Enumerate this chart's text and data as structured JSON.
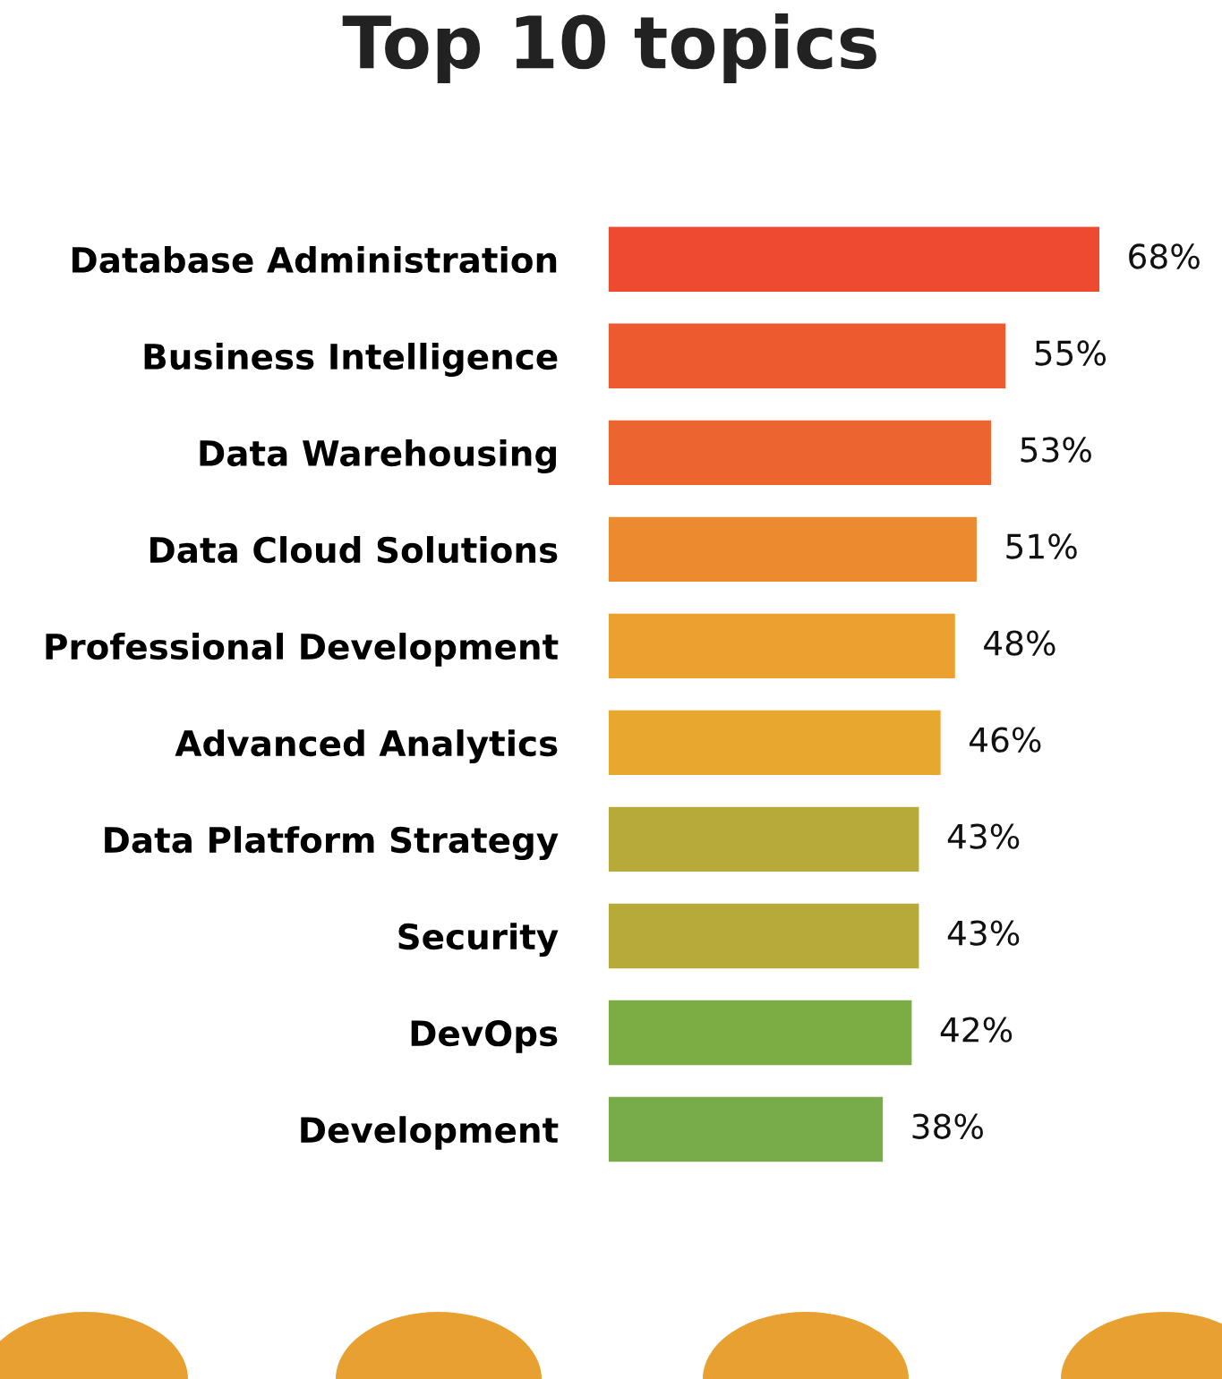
{
  "chart_data": {
    "type": "bar",
    "orientation": "horizontal",
    "title": "Top 10 topics",
    "categories": [
      "Database Administration",
      "Business Intelligence",
      "Data Warehousing",
      "Data Cloud Solutions",
      "Professional Development",
      "Advanced Analytics",
      "Data Platform Strategy",
      "Security",
      "DevOps",
      "Development"
    ],
    "values": [
      68,
      55,
      53,
      51,
      48,
      46,
      43,
      43,
      42,
      38
    ],
    "value_labels": [
      "68%",
      "55%",
      "53%",
      "51%",
      "48%",
      "46%",
      "43%",
      "43%",
      "42%",
      "38%"
    ],
    "colors": [
      "#ed4a30",
      "#ec5a30",
      "#ec6430",
      "#ec8a30",
      "#eca030",
      "#e8a830",
      "#b8aa38",
      "#b8aa38",
      "#7cac44",
      "#78ac48"
    ],
    "tick_labels": "y",
    "grid": false,
    "legend": false
  }
}
